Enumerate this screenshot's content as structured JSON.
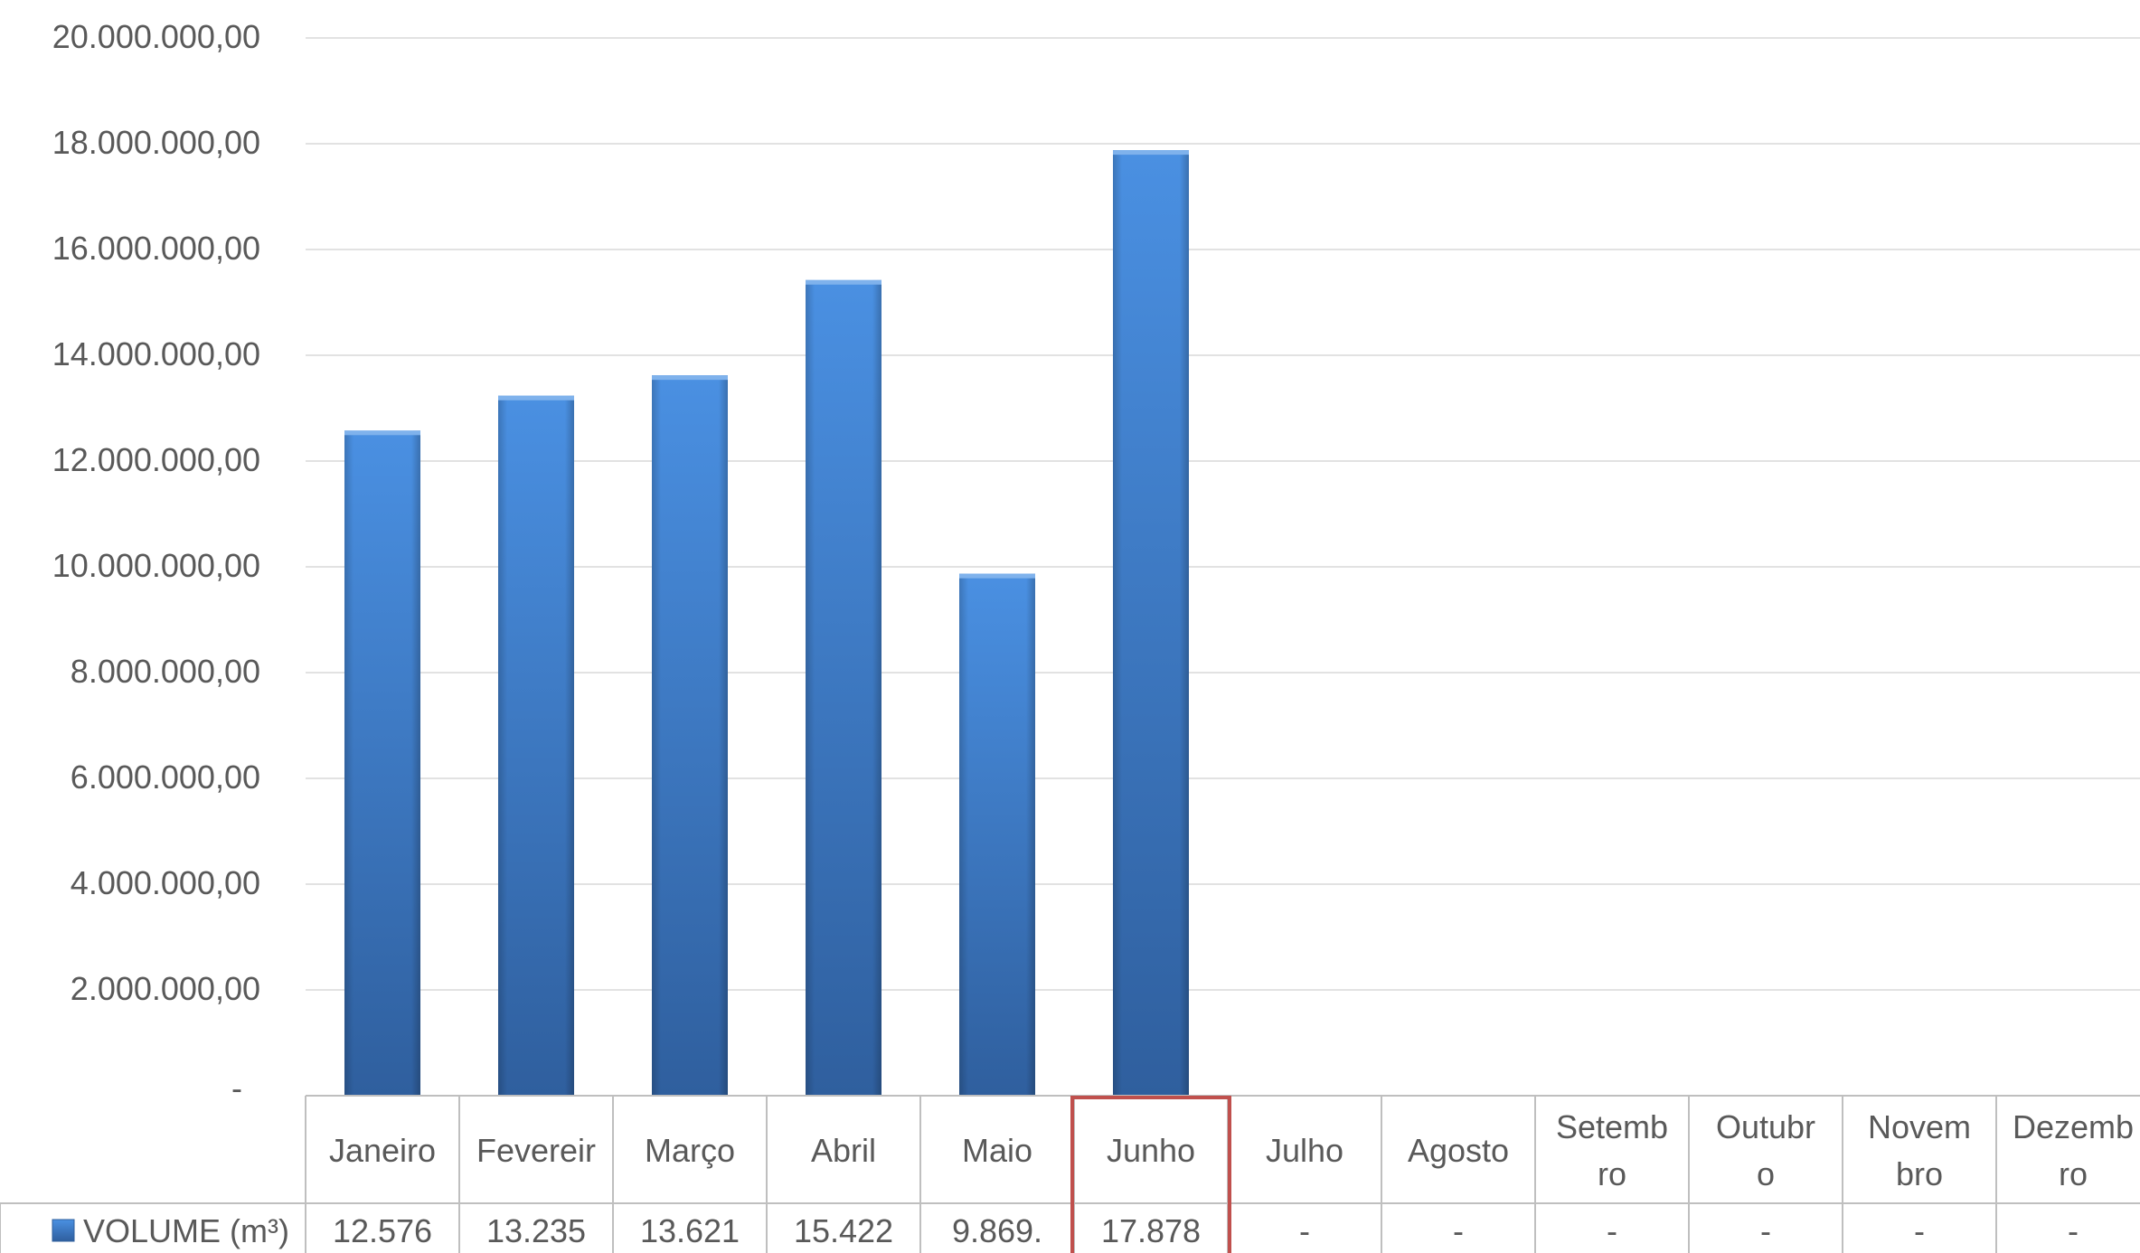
{
  "chart_data": {
    "type": "bar",
    "title": "",
    "xlabel": "",
    "ylabel": "",
    "ylim": [
      0,
      20000000
    ],
    "y_ticks": [
      0,
      2000000,
      4000000,
      6000000,
      8000000,
      10000000,
      12000000,
      14000000,
      16000000,
      18000000,
      20000000
    ],
    "y_tick_labels": [
      "-",
      "2.000.000,00",
      "4.000.000,00",
      "6.000.000,00",
      "8.000.000,00",
      "10.000.000,00",
      "12.000.000,00",
      "14.000.000,00",
      "16.000.000,00",
      "18.000.000,00",
      "20.000.000,00"
    ],
    "grid": true,
    "categories": [
      [
        "Janeiro"
      ],
      [
        "Fevereir"
      ],
      [
        "Março"
      ],
      [
        "Abril"
      ],
      [
        "Maio"
      ],
      [
        "Junho"
      ],
      [
        "Julho"
      ],
      [
        "Agosto"
      ],
      [
        "Setemb",
        "ro"
      ],
      [
        "Outubr",
        "o"
      ],
      [
        "Novem",
        "bro"
      ],
      [
        "Dezemb",
        "ro"
      ]
    ],
    "highlighted_category": 5,
    "series": [
      {
        "name": "VOLUME (m³)",
        "color": "#3a78c8",
        "values": [
          12576000,
          13235000,
          13621000,
          15422000,
          9869000,
          17878000,
          null,
          null,
          null,
          null,
          null,
          null
        ],
        "table_labels": [
          "12.576",
          "13.235",
          "13.621",
          "15.422",
          "9.869.",
          "17.878",
          "-",
          "-",
          "-",
          "-",
          "-",
          "-"
        ]
      }
    ],
    "colors": {
      "bar_top": "#4a90e2",
      "bar_bottom": "#2f5f9e",
      "grid": "#d9d9d9",
      "table_border": "#bfbfbf",
      "highlight": "#c0504d",
      "text": "#595959"
    }
  }
}
